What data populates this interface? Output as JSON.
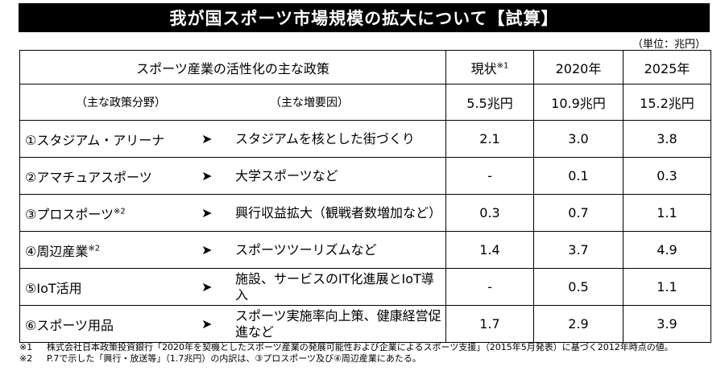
{
  "title": "我が国スポーツ市場規模の拡大について【試算】",
  "unit": "（単位：兆円）",
  "table": {
    "header": {
      "policy": "スポーツ産業の活性化の主な政策",
      "now": "現状",
      "now_sup": "※1",
      "y2020": "2020年",
      "y2025": "2025年"
    },
    "subheader": {
      "area": "（主な政策分野）",
      "factor": "（主な増要因）",
      "now": "5.5兆円",
      "y2020": "10.9兆円",
      "y2025": "15.2兆円"
    },
    "arrow": "➤",
    "rows": [
      {
        "area": "①スタジアム・アリーナ",
        "area_sup": "",
        "factor": "スタジアムを核とした街づくり",
        "now": "2.1",
        "y2020": "3.0",
        "y2025": "3.8"
      },
      {
        "area": "②アマチュアスポーツ",
        "area_sup": "",
        "factor": "大学スポーツなど",
        "now": "-",
        "y2020": "0.1",
        "y2025": "0.3"
      },
      {
        "area": "③プロスポーツ",
        "area_sup": "※2",
        "factor": "興行収益拡大（観戦者数増加など）",
        "now": "0.3",
        "y2020": "0.7",
        "y2025": "1.1"
      },
      {
        "area": "④周辺産業",
        "area_sup": "※2",
        "factor": "スポーツツーリズムなど",
        "now": "1.4",
        "y2020": "3.7",
        "y2025": "4.9"
      },
      {
        "area": "⑤IoT活用",
        "area_sup": "",
        "factor": "施設、サービスのIT化進展とIoT導入",
        "now": "-",
        "y2020": "0.5",
        "y2025": "1.1"
      },
      {
        "area": "⑥スポーツ用品",
        "area_sup": "",
        "factor": "スポーツ実施率向上策、健康経営促進など",
        "now": "1.7",
        "y2020": "2.9",
        "y2025": "3.9"
      }
    ]
  },
  "footnotes": [
    {
      "mark": "※1",
      "text": "株式会社日本政策投資銀行「2020年を契機としたスポーツ産業の発展可能性および企業によるスポーツ支援」（2015年5月発表）に基づく2012年時点の値。"
    },
    {
      "mark": "※2",
      "text": "P.7で示した「興行・放送等」（1.7兆円）の内訳は、③プロスポーツ及び④周辺産業にあたる。"
    }
  ]
}
